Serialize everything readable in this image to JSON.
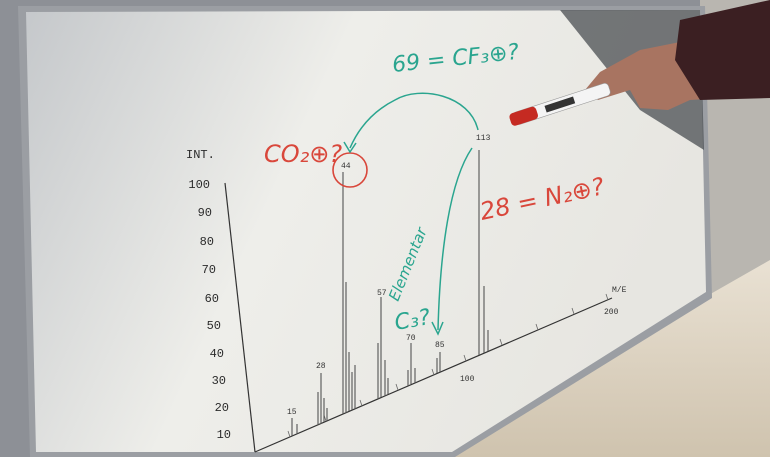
{
  "y_axis": {
    "label": "INT.",
    "ticks": [
      "100",
      "90",
      "80",
      "70",
      "60",
      "50",
      "40",
      "30",
      "20",
      "10"
    ]
  },
  "x_axis": {
    "label": "M/E",
    "ticks": [
      "100",
      "200"
    ]
  },
  "peak_labels": [
    "15",
    "28",
    "44",
    "57",
    "70",
    "85",
    "113"
  ],
  "annotations": {
    "co2": "CO₂⊕?",
    "cf3": "69 = CF₃⊕?",
    "n2": "28 = N₂⊕?",
    "elementar": "Elementar",
    "c3": "C₃?"
  }
}
